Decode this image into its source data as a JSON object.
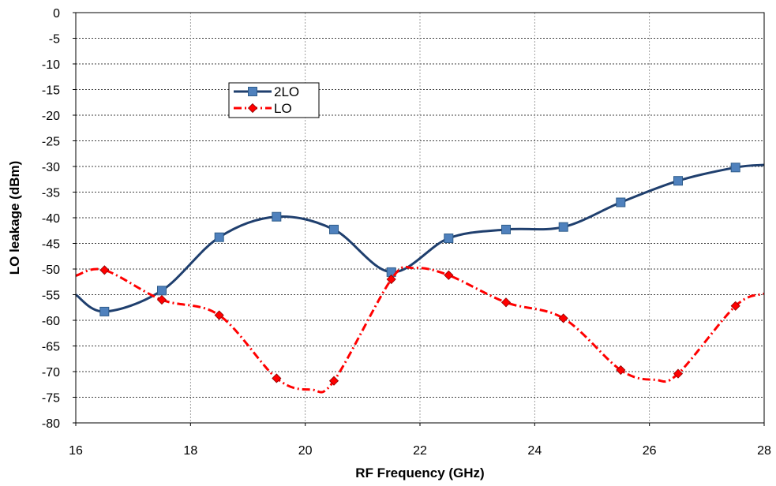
{
  "chart_data": {
    "type": "line",
    "title": "",
    "xlabel": "RF Frequency (GHz)",
    "ylabel": "LO leakage (dBm)",
    "xlim": [
      16,
      28
    ],
    "ylim": [
      -80,
      0
    ],
    "x_ticks": [
      16,
      18,
      20,
      22,
      24,
      26,
      28
    ],
    "y_ticks": [
      0,
      -5,
      -10,
      -15,
      -20,
      -25,
      -30,
      -35,
      -40,
      -45,
      -50,
      -55,
      -60,
      -65,
      -70,
      -75,
      -80
    ],
    "grid": true,
    "legend_position": "upper-left-inside",
    "series": [
      {
        "name": "2LO",
        "color": "#1F3F6E",
        "marker_color": "#4F81BD",
        "marker": "square",
        "line_style": "solid",
        "x": [
          16.5,
          17.5,
          18.5,
          19.5,
          20.5,
          21.5,
          22.5,
          23.5,
          24.5,
          25.5,
          26.5,
          27.5
        ],
        "y": [
          -58.3,
          -54.2,
          -43.8,
          -39.8,
          -42.3,
          -50.6,
          -44.0,
          -42.3,
          -41.8,
          -37.0,
          -32.8,
          -30.2
        ],
        "curve_x": [
          16,
          16.5,
          17.5,
          18.5,
          19.5,
          20.5,
          21.5,
          22.5,
          23.5,
          24.5,
          25.5,
          26.5,
          27.5,
          28
        ],
        "curve_y": [
          -55.0,
          -58.3,
          -54.2,
          -43.8,
          -39.8,
          -42.3,
          -50.6,
          -44.0,
          -42.3,
          -41.8,
          -37.0,
          -32.8,
          -30.2,
          -29.7
        ]
      },
      {
        "name": "LO",
        "color": "#FF0000",
        "marker_color": "#FF0000",
        "marker": "diamond",
        "line_style": "dash-dot",
        "x": [
          16.5,
          17.5,
          18.5,
          19.5,
          20.5,
          21.5,
          22.5,
          23.5,
          24.5,
          25.5,
          26.5,
          27.5
        ],
        "y": [
          -50.2,
          -56.0,
          -59.0,
          -71.3,
          -71.8,
          -52.0,
          -51.2,
          -56.5,
          -59.6,
          -69.7,
          -70.4,
          -57.2
        ],
        "curve_x": [
          16,
          16.5,
          17.5,
          18.5,
          19.5,
          20.1,
          20.5,
          21.5,
          21.9,
          22.5,
          23.5,
          24.5,
          25.5,
          26.1,
          26.5,
          27.5,
          28
        ],
        "curve_y": [
          -51.3,
          -50.2,
          -56.0,
          -59.0,
          -71.3,
          -73.5,
          -71.8,
          -52.0,
          -49.8,
          -51.2,
          -56.5,
          -59.6,
          -69.7,
          -71.6,
          -70.4,
          -57.2,
          -54.8
        ]
      }
    ]
  }
}
